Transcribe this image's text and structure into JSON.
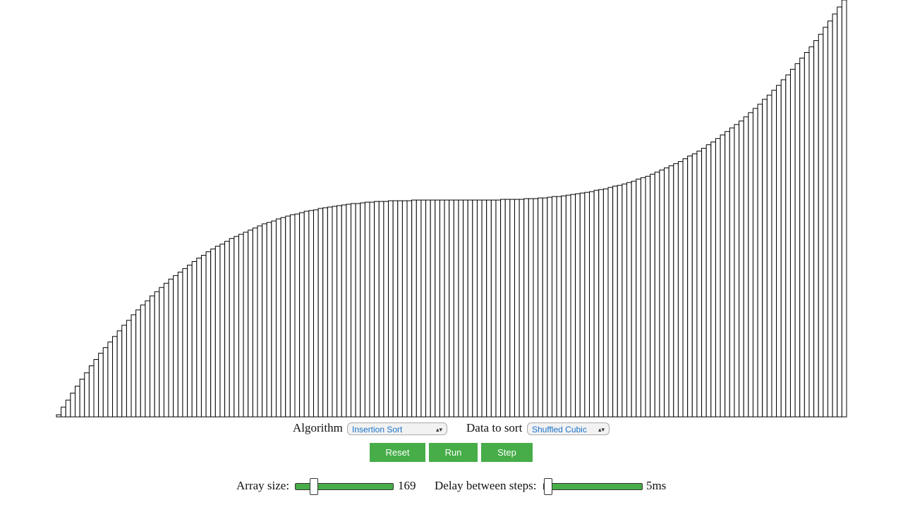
{
  "array": [
    3,
    14,
    24,
    34,
    44,
    54,
    63,
    73,
    82,
    91,
    99,
    107,
    115,
    123,
    131,
    138,
    146,
    153,
    160,
    166,
    173,
    179,
    185,
    191,
    197,
    202,
    207,
    212,
    217,
    222,
    227,
    231,
    236,
    240,
    244,
    247,
    251,
    255,
    258,
    261,
    264,
    267,
    270,
    273,
    276,
    278,
    280,
    283,
    285,
    287,
    289,
    290,
    292,
    294,
    295,
    296,
    298,
    299,
    300,
    301,
    302,
    303,
    304,
    305,
    305,
    306,
    307,
    307,
    308,
    308,
    308,
    309,
    309,
    309,
    309,
    309,
    310,
    310,
    310,
    310,
    310,
    310,
    310,
    310,
    310,
    310,
    310,
    310,
    310,
    310,
    310,
    310,
    310,
    310,
    310,
    311,
    311,
    311,
    311,
    311,
    312,
    312,
    312,
    313,
    313,
    314,
    315,
    315,
    316,
    317,
    318,
    319,
    320,
    321,
    322,
    324,
    325,
    326,
    328,
    330,
    331,
    333,
    335,
    337,
    340,
    342,
    344,
    347,
    350,
    353,
    356,
    359,
    362,
    365,
    369,
    373,
    376,
    380,
    384,
    389,
    393,
    398,
    403,
    408,
    413,
    418,
    423,
    429,
    435,
    441,
    447,
    454,
    460,
    467,
    474,
    482,
    489,
    497,
    505,
    513,
    521,
    529,
    538,
    547,
    557,
    566,
    576,
    586,
    596
  ],
  "ylim": [
    0,
    596
  ],
  "controls": {
    "algorithm_label": "Algorithm",
    "algorithm": "Insertion Sort",
    "data_label": "Data to sort",
    "data": "Shuffled Cubic",
    "buttons": [
      "Reset",
      "Run",
      "Step"
    ],
    "array_size_label": "Array size:",
    "array_size": 169,
    "delay_label": "Delay between steps:",
    "delay": "5ms"
  }
}
